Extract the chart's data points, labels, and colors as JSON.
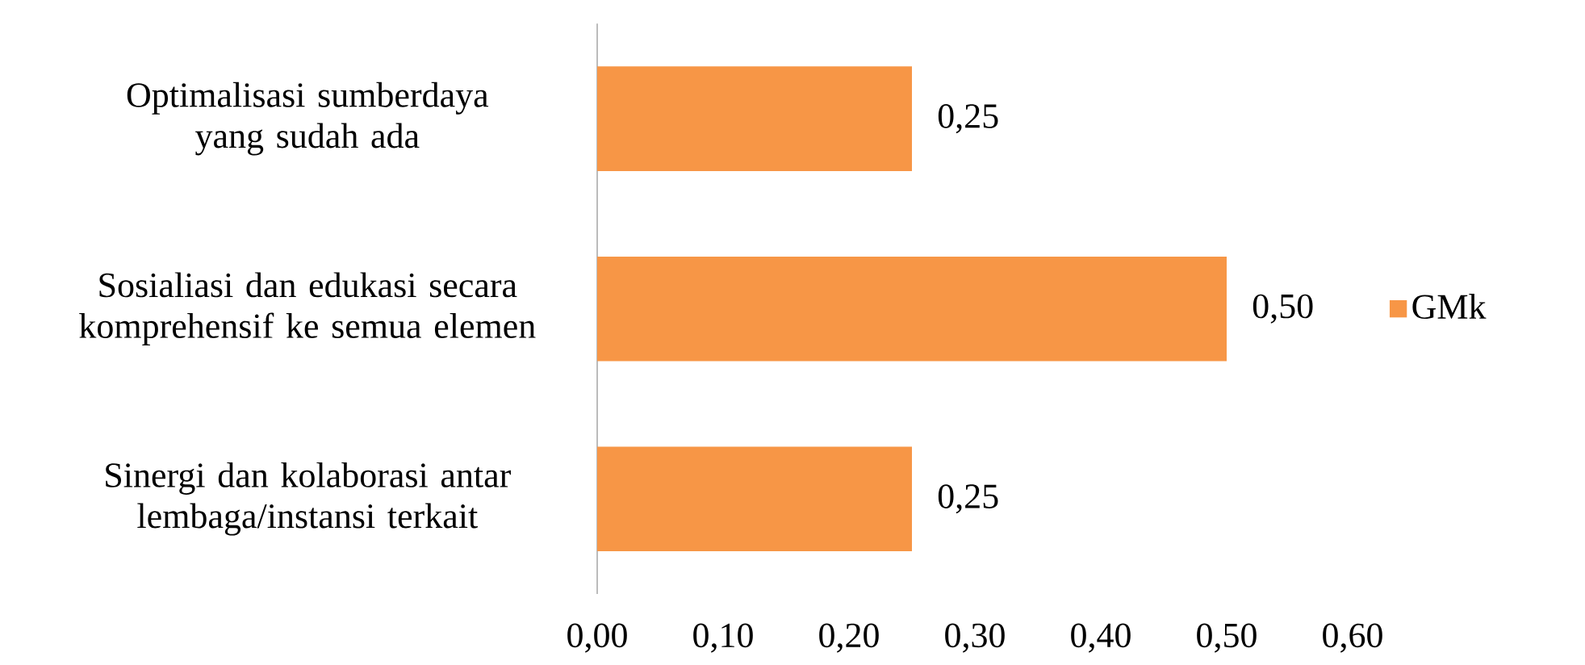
{
  "chart_data": {
    "type": "bar",
    "orientation": "horizontal",
    "categories": [
      "Optimalisasi sumberdaya yang sudah ada",
      "Sosialiasi dan edukasi secara komprehensif ke semua elemen",
      "Sinergi dan kolaborasi antar lembaga/instansi terkait"
    ],
    "series": [
      {
        "name": "GMk",
        "color": "#f79646",
        "values": [
          0.25,
          0.5,
          0.25
        ],
        "value_labels": [
          "0,25",
          "0,50",
          "0,25"
        ]
      }
    ],
    "xlim": [
      0,
      0.6
    ],
    "xticks": [
      {
        "value": 0,
        "label": "0,00"
      },
      {
        "value": 0.1,
        "label": "0,10"
      },
      {
        "value": 0.2,
        "label": "0,20"
      },
      {
        "value": 0.3,
        "label": "0,30"
      },
      {
        "value": 0.4,
        "label": "0,40"
      },
      {
        "value": 0.5,
        "label": "0,50"
      },
      {
        "value": 0.6,
        "label": "0,60"
      }
    ],
    "grid": false,
    "legend": "right"
  }
}
